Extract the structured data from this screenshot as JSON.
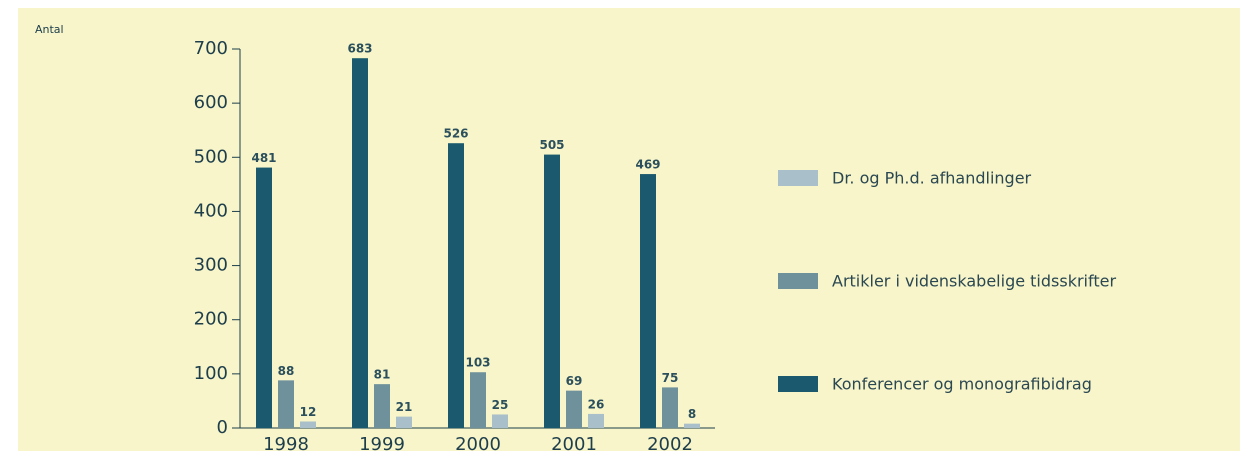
{
  "chart_data": {
    "type": "bar",
    "y_label": "Antal",
    "categories": [
      "1998",
      "1999",
      "2000",
      "2001",
      "2002"
    ],
    "series": [
      {
        "name": "Dr. og Ph.d. afhandlinger",
        "color": "#a9bfc9",
        "values": [
          12,
          21,
          25,
          26,
          8
        ]
      },
      {
        "name": "Artikler i videnskabelige tidsskrifter",
        "color": "#6f919c",
        "values": [
          88,
          81,
          103,
          69,
          75
        ]
      },
      {
        "name": "Konferencer og monografibidrag",
        "color": "#1b5a6e",
        "values": [
          481,
          683,
          526,
          505,
          469
        ]
      }
    ],
    "ylim": [
      0,
      700
    ],
    "yticks": [
      0,
      100,
      200,
      300,
      400,
      500,
      600,
      700
    ],
    "legend": "right"
  }
}
